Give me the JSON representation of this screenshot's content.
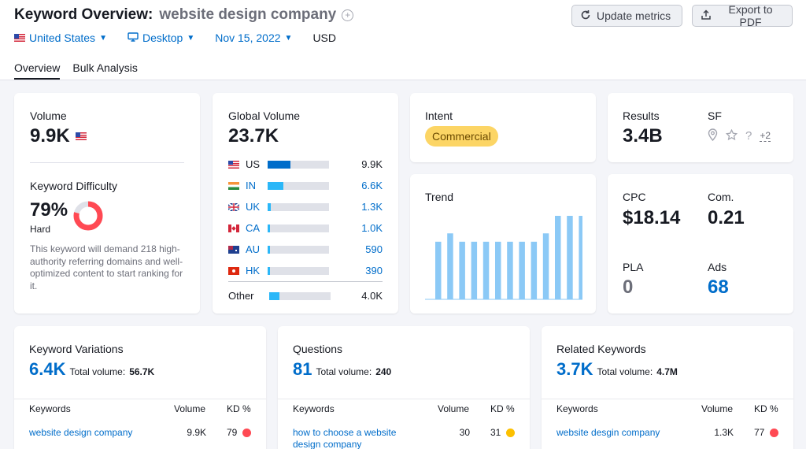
{
  "header": {
    "title": "Keyword Overview:",
    "keyword": "website design company",
    "update_label": "Update metrics",
    "export_label": "Export to PDF",
    "filters": {
      "country": "United States",
      "device": "Desktop",
      "date": "Nov 15, 2022",
      "currency": "USD"
    },
    "tabs": [
      "Overview",
      "Bulk Analysis"
    ]
  },
  "volume": {
    "label": "Volume",
    "value": "9.9K"
  },
  "difficulty": {
    "label": "Keyword Difficulty",
    "value": "79%",
    "level": "Hard",
    "percent": 79,
    "description": "This keyword will demand 218 high-authority referring domains and well-optimized content to start ranking for it.",
    "color": "#ff4953"
  },
  "global_volume": {
    "label": "Global Volume",
    "value": "23.7K",
    "countries": [
      {
        "code": "US",
        "value": "9.9K",
        "share": 0.42,
        "color": "#006dca"
      },
      {
        "code": "IN",
        "value": "6.6K",
        "share": 0.28,
        "color": "#2bb7f8"
      },
      {
        "code": "UK",
        "value": "1.3K",
        "share": 0.05,
        "color": "#2bb7f8"
      },
      {
        "code": "CA",
        "value": "1.0K",
        "share": 0.04,
        "color": "#2bb7f8"
      },
      {
        "code": "AU",
        "value": "590",
        "share": 0.03,
        "color": "#2bb7f8"
      },
      {
        "code": "HK",
        "value": "390",
        "share": 0.02,
        "color": "#2bb7f8"
      }
    ],
    "other": {
      "code": "Other",
      "value": "4.0K",
      "share": 0.17,
      "color": "#2bb7f8"
    }
  },
  "intent": {
    "label": "Intent",
    "value": "Commercial",
    "color": "#fcd565"
  },
  "trend": {
    "label": "Trend",
    "values": [
      0.69,
      0.79,
      0.69,
      0.69,
      0.69,
      0.69,
      0.69,
      0.69,
      0.69,
      0.79,
      1.0,
      1.0,
      1.0
    ],
    "color": "#8bc9f6"
  },
  "results": {
    "label": "Results",
    "value": "3.4B",
    "sf_label": "SF",
    "sf_more": "+2"
  },
  "cpc": {
    "label": "CPC",
    "value": "$18.14"
  },
  "com": {
    "label": "Com.",
    "value": "0.21"
  },
  "pla": {
    "label": "PLA",
    "value": "0"
  },
  "ads": {
    "label": "Ads",
    "value": "68"
  },
  "sections": [
    {
      "title": "Keyword Variations",
      "count": "6.4K",
      "total_label": "Total volume:",
      "total_value": "56.7K",
      "headers": [
        "Keywords",
        "Volume",
        "KD %"
      ],
      "row": {
        "keyword": "website design company",
        "volume": "9.9K",
        "kd": "79",
        "kd_color": "#ff4953"
      }
    },
    {
      "title": "Questions",
      "count": "81",
      "total_label": "Total volume:",
      "total_value": "240",
      "headers": [
        "Keywords",
        "Volume",
        "KD %"
      ],
      "row": {
        "keyword": "how to choose a website design company",
        "volume": "30",
        "kd": "31",
        "kd_color": "#fcc000"
      }
    },
    {
      "title": "Related Keywords",
      "count": "3.7K",
      "total_label": "Total volume:",
      "total_value": "4.7M",
      "headers": [
        "Keywords",
        "Volume",
        "KD %"
      ],
      "row": {
        "keyword": "website desgin company",
        "volume": "1.3K",
        "kd": "77",
        "kd_color": "#ff4953"
      }
    }
  ]
}
